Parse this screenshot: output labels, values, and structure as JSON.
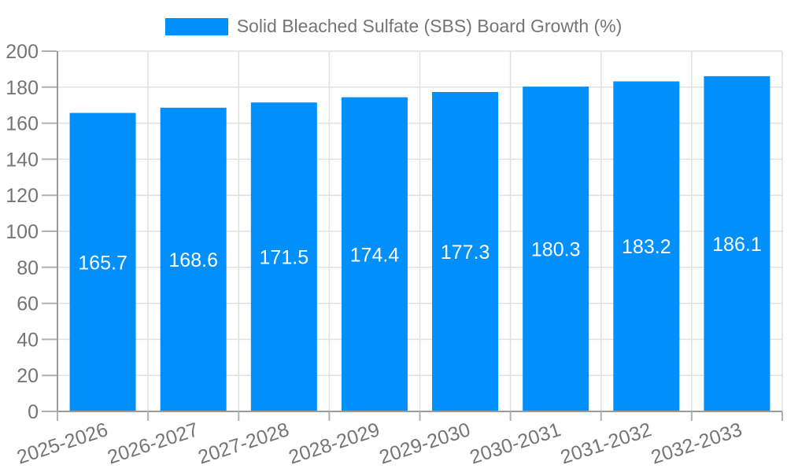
{
  "legend": {
    "label": "Solid Bleached Sulfate (SBS) Board Growth (%)"
  },
  "chart_data": {
    "type": "bar",
    "title": "",
    "categories": [
      "2025-2026",
      "2026-2027",
      "2027-2028",
      "2028-2029",
      "2029-2030",
      "2030-2031",
      "2031-2032",
      "2032-2033"
    ],
    "series": [
      {
        "name": "Solid Bleached Sulfate (SBS) Board Growth (%)",
        "values": [
          165.7,
          168.6,
          171.5,
          174.4,
          177.3,
          180.3,
          183.2,
          186.1
        ]
      }
    ],
    "value_labels_shown": true,
    "xlabel": "",
    "ylabel": "",
    "ylim": [
      0,
      200
    ],
    "yticks": [
      0,
      20,
      40,
      60,
      80,
      100,
      120,
      140,
      160,
      180,
      200
    ],
    "grid": "both",
    "legend_position": "top-center",
    "x_label_rotation_deg": -18,
    "colors": {
      "bar": "#008FFB",
      "value_label": "#ffffff",
      "axis_text": "#757575",
      "grid_line": "#e0e0e0",
      "axis_line": "#9b9b9b",
      "tick_mark": "#b0b0b0",
      "background": "#ffffff"
    }
  }
}
